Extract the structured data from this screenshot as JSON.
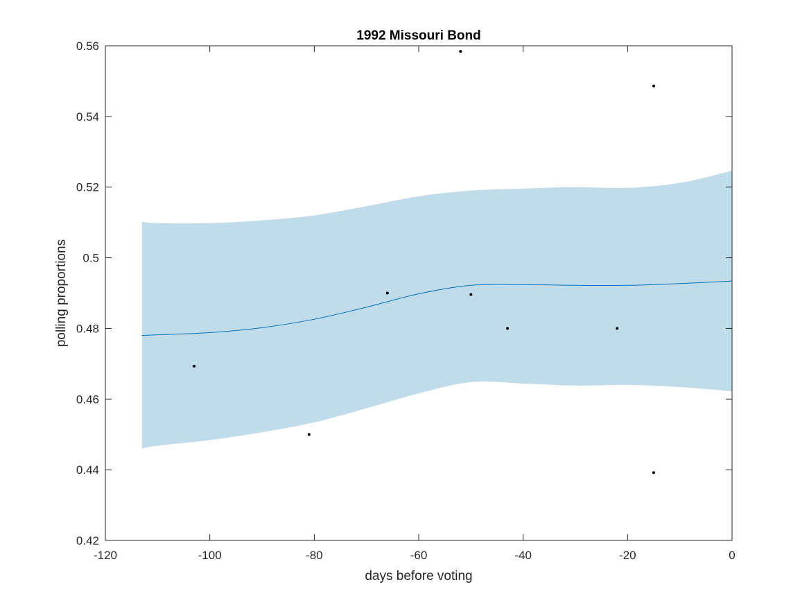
{
  "chart_data": {
    "type": "scatter",
    "title": "1992 Missouri Bond",
    "xlabel": "days before voting",
    "ylabel": "polling proportions",
    "xlim": [
      -120,
      0
    ],
    "ylim": [
      0.42,
      0.56
    ],
    "xticks": [
      -120,
      -100,
      -80,
      -60,
      -40,
      -20,
      0
    ],
    "xtick_labels": [
      "-120",
      "-100",
      "-80",
      "-60",
      "-40",
      "-20",
      "0"
    ],
    "yticks": [
      0.42,
      0.44,
      0.46,
      0.48,
      0.5,
      0.52,
      0.54,
      0.56
    ],
    "ytick_labels": [
      "0.42",
      "0.44",
      "0.46",
      "0.48",
      "0.5",
      "0.52",
      "0.54",
      "0.56"
    ],
    "grid": false,
    "points": [
      {
        "x": -103,
        "y": 0.4693
      },
      {
        "x": -81,
        "y": 0.45
      },
      {
        "x": -66,
        "y": 0.49
      },
      {
        "x": -52,
        "y": 0.5584
      },
      {
        "x": -50,
        "y": 0.4896
      },
      {
        "x": -43,
        "y": 0.48
      },
      {
        "x": -22,
        "y": 0.48
      },
      {
        "x": -15,
        "y": 0.5486
      },
      {
        "x": -15,
        "y": 0.4392
      }
    ],
    "trend": {
      "x": [
        -113,
        -110,
        -100,
        -90,
        -80,
        -70,
        -60,
        -50,
        -40,
        -30,
        -20,
        -10,
        0
      ],
      "y": [
        0.478,
        0.4782,
        0.4788,
        0.4802,
        0.4826,
        0.486,
        0.4898,
        0.4922,
        0.4924,
        0.4922,
        0.4922,
        0.4927,
        0.4934
      ],
      "lower": [
        0.446,
        0.4468,
        0.4484,
        0.4506,
        0.4534,
        0.4574,
        0.4616,
        0.4648,
        0.4644,
        0.4638,
        0.464,
        0.4634,
        0.4622
      ],
      "upper": [
        0.5102,
        0.5098,
        0.5098,
        0.5106,
        0.512,
        0.5146,
        0.5174,
        0.519,
        0.5196,
        0.52,
        0.5198,
        0.5212,
        0.5246
      ]
    },
    "colors": {
      "band": "#c0dcea",
      "line": "#0072bd",
      "points": "#000000",
      "axes": "#262626"
    }
  }
}
